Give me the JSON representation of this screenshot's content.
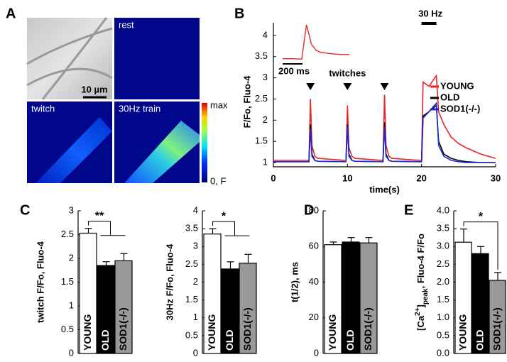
{
  "panel_a": {
    "label": "A",
    "images": [
      "rest",
      "twitch",
      "30Hz train"
    ],
    "scale_bar": "10 µm",
    "colorbar": [
      "max",
      "0, F"
    ]
  },
  "chart_data": [
    {
      "type": "line",
      "panel_label": "B",
      "x_label": "time(s)",
      "y_label": "F/Fo, Fluo-4",
      "x": [
        0,
        4.8,
        5.0,
        5.2,
        5.6,
        6,
        9.8,
        10.0,
        10.2,
        10.6,
        11,
        14.8,
        15.0,
        15.2,
        15.6,
        16,
        19.8,
        20.0,
        20.2,
        21,
        22,
        22.3,
        23,
        24,
        25,
        26,
        28,
        30
      ],
      "series": [
        {
          "name": "YOUNG",
          "color": "#e8262a",
          "values": [
            1.05,
            1.05,
            2.5,
            1.4,
            1.15,
            1.1,
            1.05,
            2.35,
            1.35,
            1.15,
            1.1,
            1.05,
            2.6,
            1.4,
            1.15,
            1.1,
            1.05,
            1.05,
            2.9,
            2.8,
            3.05,
            2.2,
            1.9,
            1.6,
            1.45,
            1.35,
            1.2,
            1.1
          ]
        },
        {
          "name": "OLD",
          "color": "#000000",
          "values": [
            1.02,
            1.02,
            1.9,
            1.2,
            1.05,
            1.03,
            1.02,
            1.9,
            1.2,
            1.05,
            1.03,
            1.02,
            1.95,
            1.2,
            1.05,
            1.03,
            1.02,
            1.02,
            2.1,
            2.2,
            2.35,
            1.5,
            1.2,
            1.1,
            1.05,
            1.02,
            1.0,
            1.0
          ]
        },
        {
          "name": "SOD1(-/-)",
          "color": "#1f2bd6",
          "values": [
            1.02,
            1.02,
            1.8,
            1.15,
            1.05,
            1.03,
            1.02,
            1.85,
            1.15,
            1.05,
            1.03,
            1.02,
            1.85,
            1.15,
            1.05,
            1.03,
            1.02,
            1.02,
            2.05,
            2.2,
            2.4,
            1.4,
            1.15,
            1.05,
            1.02,
            1.0,
            1.0,
            1.0
          ]
        }
      ],
      "xlim": [
        0,
        30
      ],
      "xticks": [
        0,
        10,
        20,
        30
      ],
      "ylim": [
        0.9,
        4.3
      ],
      "yticks": [
        1,
        1.5,
        2,
        2.5,
        3,
        3.5,
        4
      ],
      "stimuli": [
        5,
        10,
        15
      ],
      "stimuli_label": "twitches",
      "train": {
        "label": "30 Hz",
        "start": 20,
        "end": 22
      },
      "inset": {
        "color": "#e8262a",
        "scale_bar": "200 ms",
        "xlim": [
          0,
          700
        ],
        "x": [
          0,
          100,
          200,
          250,
          280,
          300,
          350,
          400,
          500,
          600,
          700
        ],
        "values": [
          3.45,
          3.45,
          3.44,
          4.25,
          4.0,
          3.8,
          3.65,
          3.6,
          3.57,
          3.55,
          3.55
        ]
      }
    },
    {
      "type": "bar",
      "panel_label": "C",
      "y_label": "twitch F/Fo, Fluo-4",
      "categories": [
        "YOUNG",
        "OLD",
        "SOD1(-/-)"
      ],
      "colors": [
        "#ffffff",
        "#000000",
        "#999999"
      ],
      "values": [
        2.53,
        1.85,
        1.95
      ],
      "errors": [
        0.1,
        0.08,
        0.15
      ],
      "ylim": [
        0,
        3
      ],
      "yticks": [
        0,
        0.5,
        1,
        1.5,
        2,
        2.5,
        3
      ],
      "significance": "**"
    },
    {
      "type": "bar",
      "y_label": "30Hz F/Fo, Fluo-4",
      "categories": [
        "YOUNG",
        "OLD",
        "SOD1(-/-)"
      ],
      "colors": [
        "#ffffff",
        "#000000",
        "#999999"
      ],
      "values": [
        3.35,
        2.37,
        2.53
      ],
      "errors": [
        0.15,
        0.2,
        0.25
      ],
      "ylim": [
        0,
        4
      ],
      "yticks": [
        0,
        0.5,
        1,
        1.5,
        2,
        2.5,
        3,
        3.5,
        4
      ],
      "significance": "*"
    },
    {
      "type": "bar",
      "panel_label": "D",
      "y_label": "t(1/2), ms",
      "categories": [
        "YOUNG",
        "OLD",
        "SOD1(-/-)"
      ],
      "colors": [
        "#ffffff",
        "#000000",
        "#999999"
      ],
      "values": [
        61,
        62.5,
        62
      ],
      "errors": [
        1.5,
        2.5,
        3
      ],
      "ylim": [
        0,
        80
      ],
      "yticks": [
        0,
        20,
        40,
        60,
        80
      ]
    },
    {
      "type": "bar",
      "panel_label": "E",
      "y_label": [
        "[Ca",
        "2+",
        "]",
        "peak",
        ", Fluo-4 F/Fo"
      ],
      "categories": [
        "YOUNG",
        "OLD",
        "SOD1(-/-)"
      ],
      "colors": [
        "#ffffff",
        "#000000",
        "#999999"
      ],
      "values": [
        3.12,
        2.8,
        2.05
      ],
      "errors": [
        0.37,
        0.2,
        0.22
      ],
      "ylim": [
        0,
        4
      ],
      "yticks": [
        {
          "value": 0,
          "label": "0.0"
        },
        0.5,
        {
          "value": 1,
          "label": "1.0"
        },
        1.5,
        {
          "value": 2,
          "label": "2.0"
        },
        2.5,
        {
          "value": 3,
          "label": "3.0"
        },
        3.5,
        {
          "value": 4,
          "label": "4.0"
        }
      ],
      "significance": "*"
    }
  ]
}
